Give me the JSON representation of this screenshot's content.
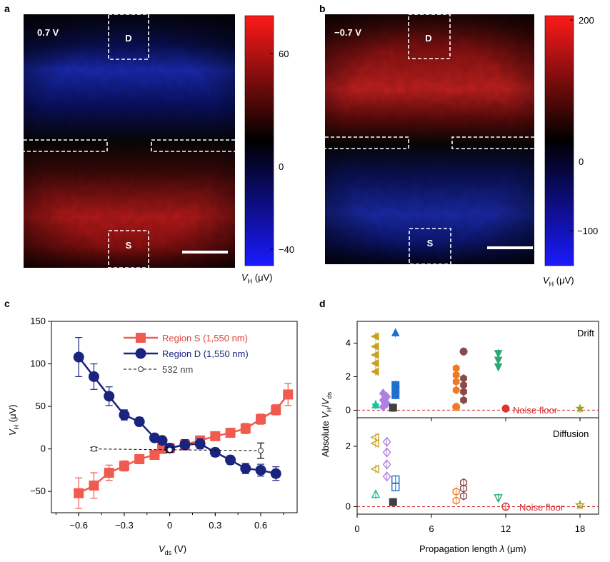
{
  "colors": {
    "red": "#f05a4f",
    "navy": "#1a237e",
    "noise": "#d62728"
  },
  "panels": {
    "a": {
      "letter": "a",
      "voltage": "0.7 V",
      "label_d": "D",
      "label_s": "S",
      "cbar_ticks": [
        "60",
        "0",
        "−40"
      ],
      "cbar_range": [
        -50,
        80
      ],
      "cbar_label": "V_H (μV)"
    },
    "b": {
      "letter": "b",
      "voltage": "−0.7 V",
      "label_d": "D",
      "label_s": "S",
      "cbar_ticks": [
        "200",
        "0",
        "−100"
      ],
      "cbar_range": [
        -140,
        200
      ],
      "cbar_label": "V_H (μV)"
    },
    "c": {
      "letter": "c"
    },
    "d": {
      "letter": "d"
    }
  },
  "chart_data": [
    {
      "type": "line",
      "panel": "c",
      "xlabel": "V_ds (V)",
      "ylabel": "V_H (μV)",
      "xlim": [
        -0.78,
        0.84
      ],
      "ylim": [
        -75,
        150
      ],
      "xticks": [
        "−0.6",
        "−0.3",
        "0",
        "0.3",
        "0.6"
      ],
      "xtick_values": [
        -0.6,
        -0.3,
        0,
        0.3,
        0.6
      ],
      "yticks": [
        "−50",
        "0",
        "50",
        "100",
        "150"
      ],
      "ytick_values": [
        -50,
        0,
        50,
        100,
        150
      ],
      "series": [
        {
          "name": "Region S (1,550 nm)",
          "marker": "square",
          "color": "#f05a4f",
          "x": [
            -0.6,
            -0.5,
            -0.4,
            -0.3,
            -0.2,
            -0.1,
            -0.05,
            0,
            0.1,
            0.2,
            0.3,
            0.4,
            0.5,
            0.6,
            0.7,
            0.78
          ],
          "y": [
            -52,
            -43,
            -28,
            -20,
            -12,
            -7,
            0,
            1,
            5,
            10,
            15,
            19,
            24,
            35,
            46,
            64
          ],
          "err": [
            18,
            15,
            9,
            6,
            5,
            4,
            3,
            3,
            3,
            3,
            3,
            4,
            6,
            6,
            6,
            13
          ]
        },
        {
          "name": "Region D (1,550 nm)",
          "marker": "circle",
          "color": "#1a237e",
          "x": [
            -0.6,
            -0.5,
            -0.4,
            -0.3,
            -0.2,
            -0.1,
            -0.05,
            0,
            0.1,
            0.2,
            0.3,
            0.4,
            0.5,
            0.6,
            0.7
          ],
          "y": [
            108,
            85,
            62,
            40,
            32,
            13,
            10,
            1,
            5,
            6,
            -4,
            -13,
            -23,
            -25,
            -29
          ],
          "err": [
            23,
            15,
            11,
            6,
            5,
            4,
            4,
            4,
            6,
            6,
            5,
            5,
            6,
            7,
            8
          ]
        },
        {
          "name": "532 nm",
          "marker": "open-circle",
          "color": "#000000",
          "x": [
            -0.5,
            0,
            0.6
          ],
          "y": [
            0,
            -1,
            -2
          ],
          "err": [
            2,
            3,
            9
          ]
        }
      ]
    },
    {
      "type": "scatter",
      "panel": "d",
      "xlabel": "Propagation length λ (μm)",
      "ylabel": "Absolute V_H/V_ds",
      "xlim": [
        0,
        19.5
      ],
      "xticks": [
        "0",
        "6",
        "12",
        "18"
      ],
      "xtick_values": [
        0,
        6,
        12,
        18
      ],
      "noise_label": "Noise floor",
      "subplots": [
        {
          "title": "Drift",
          "ylim": [
            -0.45,
            5.3
          ],
          "yticks": [
            "0",
            "2",
            "4"
          ],
          "ytick_values": [
            0,
            2,
            4
          ],
          "points": [
            {
              "x": 1.5,
              "y": 4.4,
              "m": "tri-left",
              "c": "#c9a020"
            },
            {
              "x": 1.5,
              "y": 3.8,
              "m": "tri-left",
              "c": "#c9a020"
            },
            {
              "x": 1.5,
              "y": 3.3,
              "m": "tri-left",
              "c": "#c9a020"
            },
            {
              "x": 1.5,
              "y": 2.8,
              "m": "tri-left",
              "c": "#c9a020"
            },
            {
              "x": 1.5,
              "y": 2.3,
              "m": "tri-left",
              "c": "#c9a020"
            },
            {
              "x": 1.5,
              "y": 0.35,
              "m": "plus",
              "c": "#20c0a0"
            },
            {
              "x": 1.5,
              "y": 0.3,
              "m": "triangle",
              "c": "#20c0a0"
            },
            {
              "x": 2.1,
              "y": 1.0,
              "m": "diamond",
              "c": "#b080e0"
            },
            {
              "x": 2.1,
              "y": 0.6,
              "m": "diamond",
              "c": "#b080e0"
            },
            {
              "x": 2.1,
              "y": 0.2,
              "m": "diamond",
              "c": "#b080e0"
            },
            {
              "x": 2.4,
              "y": 0.8,
              "m": "diamond",
              "c": "#b080e0"
            },
            {
              "x": 2.4,
              "y": 0.4,
              "m": "diamond",
              "c": "#b080e0"
            },
            {
              "x": 3.1,
              "y": 4.6,
              "m": "triangle",
              "c": "#1f6fd0"
            },
            {
              "x": 3.1,
              "y": 1.5,
              "m": "square",
              "c": "#1f6fd0"
            },
            {
              "x": 3.1,
              "y": 1.2,
              "m": "square",
              "c": "#1f6fd0"
            },
            {
              "x": 3.1,
              "y": 0.9,
              "m": "square",
              "c": "#1f6fd0"
            },
            {
              "x": 2.9,
              "y": 0.15,
              "m": "square",
              "c": "#404040"
            },
            {
              "x": 8.0,
              "y": 2.5,
              "m": "hexagon",
              "c": "#f07a20"
            },
            {
              "x": 8.0,
              "y": 2.1,
              "m": "hexagon",
              "c": "#f07a20"
            },
            {
              "x": 8.0,
              "y": 1.7,
              "m": "hexagon",
              "c": "#f07a20"
            },
            {
              "x": 8.0,
              "y": 1.2,
              "m": "hexagon",
              "c": "#f07a20"
            },
            {
              "x": 8.0,
              "y": 0.2,
              "m": "circle",
              "c": "#f07a20"
            },
            {
              "x": 8.6,
              "y": 3.5,
              "m": "circle",
              "c": "#8b4a4a"
            },
            {
              "x": 8.6,
              "y": 1.9,
              "m": "hexagon",
              "c": "#8b4a4a"
            },
            {
              "x": 8.6,
              "y": 1.5,
              "m": "hexagon",
              "c": "#8b4a4a"
            },
            {
              "x": 8.6,
              "y": 1.1,
              "m": "hexagon",
              "c": "#8b4a4a"
            },
            {
              "x": 8.6,
              "y": 0.6,
              "m": "hexagon",
              "c": "#8b4a4a"
            },
            {
              "x": 11.4,
              "y": 3.4,
              "m": "tri-down",
              "c": "#2aa870"
            },
            {
              "x": 11.4,
              "y": 3.0,
              "m": "tri-down",
              "c": "#2aa870"
            },
            {
              "x": 11.4,
              "y": 2.6,
              "m": "tri-down",
              "c": "#2aa870"
            },
            {
              "x": 12.0,
              "y": 0.1,
              "m": "circle",
              "c": "#e03030"
            },
            {
              "x": 18.0,
              "y": 0.1,
              "m": "star",
              "c": "#a0a020"
            }
          ]
        },
        {
          "title": "Diffusion",
          "ylim": [
            -0.25,
            2.95
          ],
          "yticks": [
            "0",
            "2"
          ],
          "ytick_values": [
            0,
            2
          ],
          "points": [
            {
              "x": 1.5,
              "y": 2.3,
              "m": "tri-left-open",
              "c": "#c9a020"
            },
            {
              "x": 1.5,
              "y": 2.1,
              "m": "tri-left-open",
              "c": "#c9a020"
            },
            {
              "x": 1.5,
              "y": 1.25,
              "m": "tri-left-open",
              "c": "#c9a020"
            },
            {
              "x": 1.5,
              "y": 0.4,
              "m": "tri-open",
              "c": "#20c0a0"
            },
            {
              "x": 2.4,
              "y": 2.15,
              "m": "diamond-open",
              "c": "#b080e0"
            },
            {
              "x": 2.4,
              "y": 1.8,
              "m": "diamond-open",
              "c": "#b080e0"
            },
            {
              "x": 2.4,
              "y": 1.4,
              "m": "diamond-open",
              "c": "#b080e0"
            },
            {
              "x": 2.4,
              "y": 1.0,
              "m": "diamond-open",
              "c": "#b080e0"
            },
            {
              "x": 3.1,
              "y": 0.9,
              "m": "square-open",
              "c": "#1f6fd0"
            },
            {
              "x": 3.1,
              "y": 0.65,
              "m": "square-open",
              "c": "#1f6fd0"
            },
            {
              "x": 2.9,
              "y": 0.15,
              "m": "square",
              "c": "#404040"
            },
            {
              "x": 8.0,
              "y": 0.5,
              "m": "hexagon-open",
              "c": "#f07a20"
            },
            {
              "x": 8.0,
              "y": 0.2,
              "m": "hexagon-open",
              "c": "#f07a20"
            },
            {
              "x": 8.6,
              "y": 0.8,
              "m": "hexagon-open",
              "c": "#8b4a4a"
            },
            {
              "x": 8.6,
              "y": 0.6,
              "m": "hexagon-open",
              "c": "#8b4a4a"
            },
            {
              "x": 8.6,
              "y": 0.35,
              "m": "hexagon-open",
              "c": "#8b4a4a"
            },
            {
              "x": 11.4,
              "y": 0.3,
              "m": "tri-down-open",
              "c": "#2aa870"
            },
            {
              "x": 12.0,
              "y": 0.0,
              "m": "circle-open",
              "c": "#e03030"
            },
            {
              "x": 18.0,
              "y": 0.05,
              "m": "star-open",
              "c": "#a0a020"
            }
          ]
        }
      ]
    }
  ]
}
